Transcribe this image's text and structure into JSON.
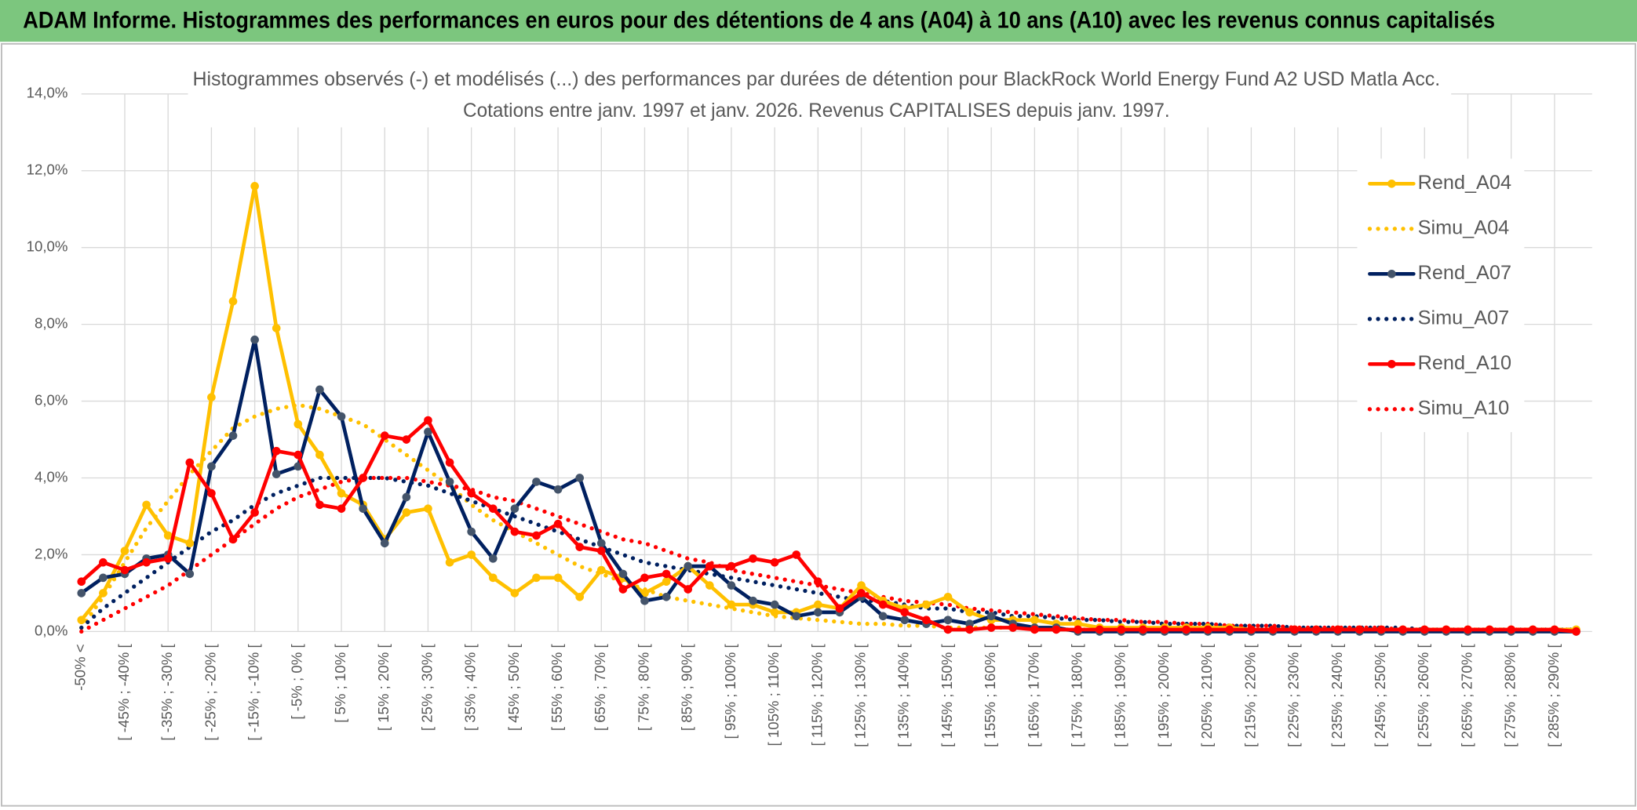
{
  "header": {
    "title": "ADAM Informe. Histogrammes des performances en euros pour des détentions de 4 ans (A04) à 10 ans (A10) avec les revenus connus capitalisés"
  },
  "chart_data": {
    "type": "line",
    "title": "Histogrammes observés (-) et modélisés (...) des performances par durées de détention pour BlackRock World Energy Fund A2 USD Matla Acc.",
    "subtitle": "Cotations entre janv. 1997 et janv. 2026. Revenus CAPITALISES depuis janv. 1997.",
    "categories": [
      "-50% <",
      null,
      "[ -45% ; -40% [",
      null,
      "[ -35% ; -30% [",
      null,
      "[ -25% ; -20% [",
      null,
      "[ -15% ; -10% [",
      null,
      "[ -5% ; 0% [",
      null,
      "[ 5% ; 10% [",
      null,
      "[ 15% ; 20% [",
      null,
      "[ 25% ; 30% [",
      null,
      "[ 35% ; 40% [",
      null,
      "[ 45% ; 50% [",
      null,
      "[ 55% ; 60% [",
      null,
      "[ 65% ; 70% [",
      null,
      "[ 75% ; 80% [",
      null,
      "[ 85% ; 90% [",
      null,
      "[ 95% ; 100% [",
      null,
      "[ 105% ; 110% [",
      null,
      "[ 115% ; 120% [",
      null,
      "[ 125% ; 130% [",
      null,
      "[ 135% ; 140% [",
      null,
      "[ 145% ; 150% [",
      null,
      "[ 155% ; 160% [",
      null,
      "[ 165% ; 170% [",
      null,
      "[ 175% ; 180% [",
      null,
      "[ 185% ; 190% [",
      null,
      "[ 195% ; 200% [",
      null,
      "[ 205% ; 210% [",
      null,
      "[ 215% ; 220% [",
      null,
      "[ 225% ; 230% [",
      null,
      "[ 235% ; 240% [",
      null,
      "[ 245% ; 250% [",
      null,
      "[ 255% ; 260% [",
      null,
      "[ 265% ; 270% [",
      null,
      "[ 275% ; 280% [",
      null,
      "[ 285% ; 290% [",
      null
    ],
    "ylim": [
      0,
      14
    ],
    "yticks": [
      {
        "value": 0,
        "label": "0,0%"
      },
      {
        "value": 2,
        "label": "2,0%"
      },
      {
        "value": 4,
        "label": "4,0%"
      },
      {
        "value": 6,
        "label": "6,0%"
      },
      {
        "value": 8,
        "label": "8,0%"
      },
      {
        "value": 10,
        "label": "10,0%"
      },
      {
        "value": 12,
        "label": "12,0%"
      },
      {
        "value": 14,
        "label": "14,0%"
      }
    ],
    "grid": true,
    "legend": "right",
    "series": [
      {
        "name": "Rend_A04",
        "color": "#FFC000",
        "marker_color": "#FFC000",
        "style": "solid",
        "values": [
          0.3,
          1.0,
          2.1,
          3.3,
          2.5,
          2.3,
          6.1,
          8.6,
          11.6,
          7.9,
          5.4,
          4.6,
          3.6,
          3.3,
          2.4,
          3.1,
          3.2,
          1.8,
          2.0,
          1.4,
          1.0,
          1.4,
          1.4,
          0.9,
          1.6,
          1.4,
          1.0,
          1.3,
          1.7,
          1.2,
          0.7,
          0.7,
          0.5,
          0.5,
          0.7,
          0.6,
          1.2,
          0.8,
          0.6,
          0.7,
          0.9,
          0.5,
          0.3,
          0.3,
          0.3,
          0.2,
          0.2,
          0.1,
          0.1,
          0.1,
          0.1,
          0.1,
          0.1,
          0.1,
          0.05,
          0.05,
          0.05,
          0.05,
          0.05,
          0.05,
          0.05,
          0.05,
          0.05,
          0.05,
          0.05,
          0.05,
          0.05,
          0.05,
          0.05,
          0.05
        ]
      },
      {
        "name": "Simu_A04",
        "color": "#FFC000",
        "style": "dotted",
        "values": [
          0.1,
          0.9,
          1.8,
          2.7,
          3.4,
          4.1,
          4.7,
          5.3,
          5.6,
          5.8,
          5.9,
          5.8,
          5.6,
          5.4,
          5.0,
          4.6,
          4.2,
          3.8,
          3.3,
          2.9,
          2.6,
          2.3,
          2.0,
          1.7,
          1.5,
          1.3,
          1.1,
          0.9,
          0.8,
          0.7,
          0.6,
          0.5,
          0.4,
          0.35,
          0.3,
          0.25,
          0.2,
          0.2,
          0.15,
          0.15,
          0.1,
          0.1,
          0.1,
          0.1,
          0.1,
          0.05,
          0.05,
          0.05,
          0.05,
          0.05,
          0.05,
          0.05,
          0.05,
          0.05,
          0.05,
          0.05,
          0.05,
          0.05,
          0.05,
          0.05,
          0.05,
          0.05,
          0.05,
          0.05,
          0.05,
          0.05,
          0.05,
          0.05,
          0.05,
          0.05
        ]
      },
      {
        "name": "Rend_A07",
        "color": "#002060",
        "marker_color": "#44546A",
        "style": "solid",
        "values": [
          1.0,
          1.4,
          1.5,
          1.9,
          2.0,
          1.5,
          4.3,
          5.1,
          7.6,
          4.1,
          4.3,
          6.3,
          5.6,
          3.2,
          2.3,
          3.5,
          5.2,
          3.9,
          2.6,
          1.9,
          3.2,
          3.9,
          3.7,
          4.0,
          2.3,
          1.5,
          0.8,
          0.9,
          1.7,
          1.7,
          1.2,
          0.8,
          0.7,
          0.4,
          0.5,
          0.5,
          0.9,
          0.4,
          0.3,
          0.2,
          0.3,
          0.2,
          0.4,
          0.2,
          0.1,
          0.1,
          0.0,
          0.0,
          0.0,
          0.0,
          0.0,
          0.0,
          0.0,
          0.0,
          0.0,
          0.0,
          0.0,
          0.0,
          0.0,
          0.0,
          0.0,
          0.0,
          0.0,
          0.0,
          0.0,
          0.0,
          0.0,
          0.0,
          0.0,
          0.0
        ]
      },
      {
        "name": "Simu_A07",
        "color": "#002060",
        "style": "dotted",
        "values": [
          0.1,
          0.6,
          1.0,
          1.4,
          1.8,
          2.2,
          2.6,
          2.9,
          3.3,
          3.6,
          3.8,
          4.0,
          4.0,
          4.0,
          4.0,
          3.9,
          3.8,
          3.6,
          3.4,
          3.2,
          3.0,
          2.8,
          2.6,
          2.4,
          2.2,
          2.0,
          1.8,
          1.7,
          1.6,
          1.5,
          1.4,
          1.3,
          1.2,
          1.1,
          1.0,
          0.9,
          0.8,
          0.8,
          0.7,
          0.6,
          0.6,
          0.5,
          0.5,
          0.4,
          0.4,
          0.35,
          0.3,
          0.3,
          0.25,
          0.25,
          0.2,
          0.2,
          0.2,
          0.15,
          0.15,
          0.15,
          0.1,
          0.1,
          0.1,
          0.1,
          0.1,
          0.1,
          0.05,
          0.05,
          0.05,
          0.05,
          0.05,
          0.05,
          0.05,
          0.05
        ]
      },
      {
        "name": "Rend_A10",
        "color": "#FF0000",
        "marker_color": "#FF0000",
        "style": "solid",
        "values": [
          1.3,
          1.8,
          1.6,
          1.8,
          1.9,
          4.4,
          3.6,
          2.4,
          3.1,
          4.7,
          4.6,
          3.3,
          3.2,
          4.0,
          5.1,
          5.0,
          5.5,
          4.4,
          3.6,
          3.2,
          2.6,
          2.5,
          2.8,
          2.2,
          2.1,
          1.1,
          1.4,
          1.5,
          1.1,
          1.7,
          1.7,
          1.9,
          1.8,
          2.0,
          1.3,
          0.6,
          1.0,
          0.7,
          0.5,
          0.3,
          0.05,
          0.05,
          0.1,
          0.1,
          0.05,
          0.05,
          0.05,
          0.05,
          0.05,
          0.05,
          0.05,
          0.05,
          0.05,
          0.05,
          0.05,
          0.05,
          0.05,
          0.05,
          0.05,
          0.05,
          0.05,
          0.05,
          0.05,
          0.05,
          0.05,
          0.05,
          0.05,
          0.05,
          0.05,
          0.0
        ]
      },
      {
        "name": "Simu_A10",
        "color": "#FF0000",
        "style": "dotted",
        "values": [
          0.0,
          0.3,
          0.6,
          0.9,
          1.2,
          1.6,
          2.0,
          2.4,
          2.8,
          3.2,
          3.5,
          3.7,
          3.9,
          4.0,
          4.0,
          4.0,
          3.9,
          3.8,
          3.7,
          3.5,
          3.4,
          3.2,
          3.0,
          2.8,
          2.6,
          2.4,
          2.3,
          2.1,
          1.9,
          1.8,
          1.6,
          1.5,
          1.4,
          1.3,
          1.2,
          1.1,
          1.0,
          0.9,
          0.8,
          0.75,
          0.7,
          0.6,
          0.55,
          0.5,
          0.45,
          0.4,
          0.35,
          0.3,
          0.3,
          0.25,
          0.25,
          0.2,
          0.2,
          0.15,
          0.15,
          0.15,
          0.1,
          0.1,
          0.1,
          0.1,
          0.1,
          0.05,
          0.05,
          0.05,
          0.05,
          0.05,
          0.05,
          0.05,
          0.05,
          0.05
        ]
      }
    ]
  }
}
